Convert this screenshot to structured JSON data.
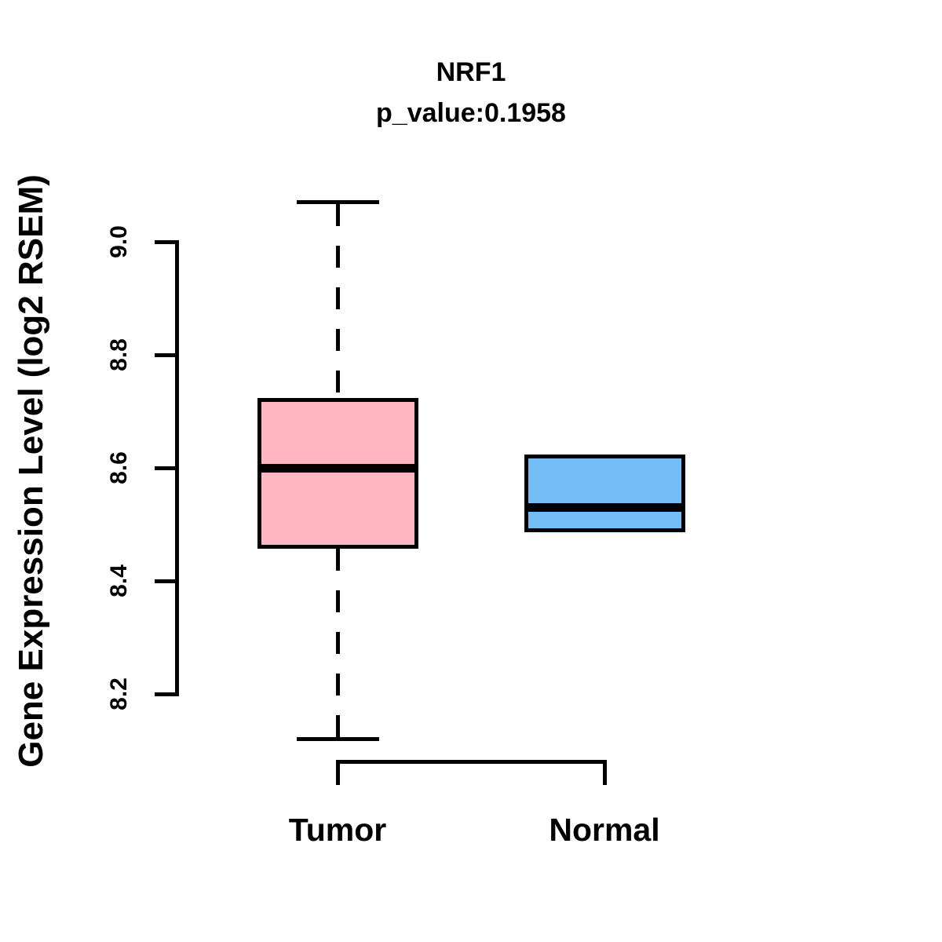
{
  "title": {
    "line1": "NRF1",
    "line2": "p_value:0.1958"
  },
  "y_axis": {
    "label": "Gene Expression Level (log2 RSEM)",
    "ticks": [
      "9.0",
      "8.8",
      "8.6",
      "8.4",
      "8.2"
    ]
  },
  "x_axis": {
    "labels": [
      "Tumor",
      "Normal"
    ]
  },
  "colors": {
    "tumor_box": "#FFB6C1",
    "normal_box": "#74BEF7",
    "stroke": "#000000",
    "background": "#FFFFFF"
  },
  "chart_data": {
    "type": "boxplot",
    "title": "NRF1",
    "subtitle": "p_value:0.1958",
    "ylabel": "Gene Expression Level (log2 RSEM)",
    "ylim": [
      8.2,
      9.0
    ],
    "y_ticks": [
      9.0,
      8.8,
      8.6,
      8.4,
      8.2
    ],
    "grid": "off",
    "legend": "none",
    "groups": [
      {
        "label": "Tumor",
        "color": "#FFB6C1",
        "whisker_low": 8.12,
        "q1": 8.46,
        "median": 8.6,
        "q3": 8.72,
        "whisker_high": 9.07,
        "whisker_style": "dashed"
      },
      {
        "label": "Normal",
        "color": "#74BEF7",
        "whisker_low": 8.49,
        "q1": 8.49,
        "median": 8.53,
        "q3": 8.62,
        "whisker_high": 8.62,
        "whisker_style": "dashed"
      }
    ]
  }
}
